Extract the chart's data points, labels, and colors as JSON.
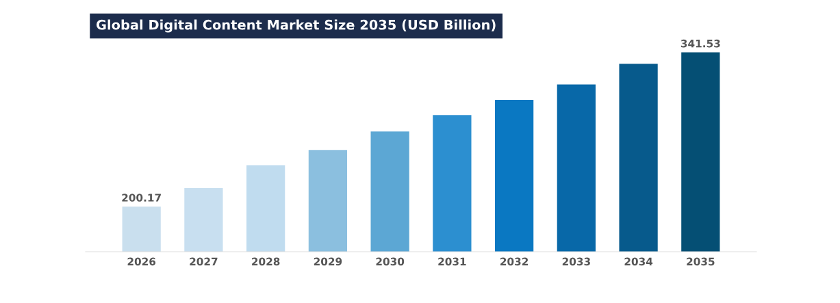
{
  "chart_data": {
    "type": "bar",
    "title": "Global Digital Content Market Size 2035 (USD Billion)",
    "categories": [
      "2026",
      "2027",
      "2028",
      "2029",
      "2030",
      "2031",
      "2032",
      "2033",
      "2034",
      "2035"
    ],
    "tick_labels": "x",
    "values": [
      200.17,
      217,
      238,
      252,
      269,
      284,
      298,
      312,
      331,
      341.53
    ],
    "colors": [
      "#c9dfee",
      "#c8dff0",
      "#c0dcef",
      "#8bbfdf",
      "#5ca7d4",
      "#2c8fd0",
      "#0a78c2",
      "#0868a8",
      "#075a8c",
      "#054f74"
    ],
    "value_labels": [
      "200.17",
      null,
      null,
      null,
      null,
      null,
      null,
      null,
      null,
      "341.53"
    ],
    "grid": false
  }
}
